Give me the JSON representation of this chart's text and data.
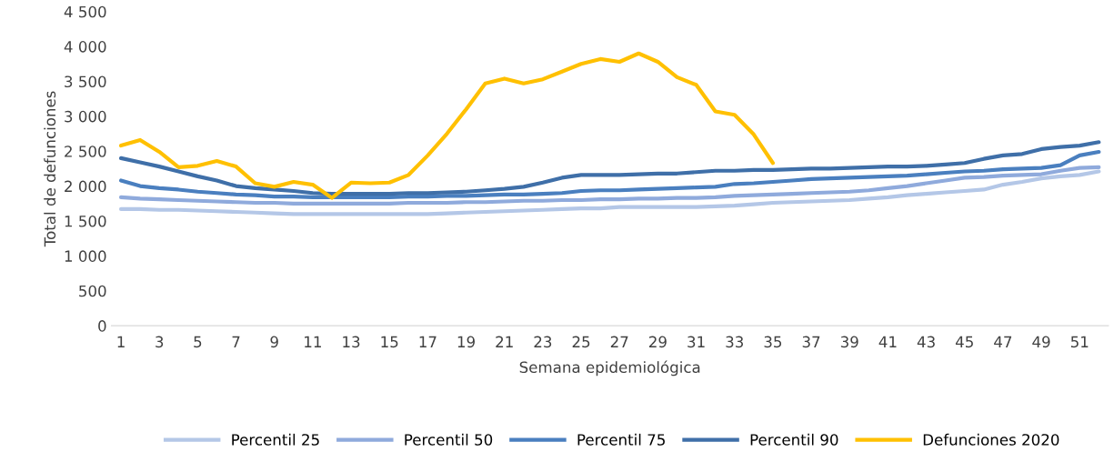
{
  "chart_data": {
    "type": "line",
    "xlabel": "Semana epidemiológica",
    "ylabel": "Total de defunciones",
    "categories": [
      "1",
      null,
      "3",
      null,
      "5",
      null,
      "7",
      null,
      "9",
      null,
      "11",
      null,
      "13",
      null,
      "15",
      null,
      "17",
      null,
      "19",
      null,
      "21",
      null,
      "23",
      null,
      "25",
      null,
      "27",
      null,
      "29",
      null,
      "31",
      null,
      "33",
      null,
      "35",
      null,
      "37",
      null,
      "39",
      null,
      "41",
      null,
      "43",
      null,
      "45",
      null,
      "47",
      null,
      "49",
      null,
      "51",
      null
    ],
    "ylim": [
      0,
      4500
    ],
    "yticks": [
      0,
      500,
      {
        "value": 1000,
        "label": "1 000"
      },
      {
        "value": 1500,
        "label": "1 500"
      },
      {
        "value": 2000,
        "label": "2 000"
      },
      {
        "value": 2500,
        "label": "2 500"
      },
      {
        "value": 3000,
        "label": "3 000"
      },
      {
        "value": 3500,
        "label": "3 500"
      },
      {
        "value": 4000,
        "label": "4 000"
      },
      {
        "value": 4500,
        "label": "4 500"
      }
    ],
    "grid": false,
    "legend": "bottom",
    "marker": "none",
    "line_style": "solid",
    "series": [
      {
        "name": "Percentil 25",
        "color": "#b4c7e7",
        "values": [
          1670,
          1670,
          1660,
          1660,
          1650,
          1640,
          1630,
          1620,
          1610,
          1600,
          1600,
          1600,
          1600,
          1600,
          1600,
          1600,
          1600,
          1610,
          1620,
          1630,
          1640,
          1650,
          1660,
          1670,
          1680,
          1680,
          1700,
          1700,
          1700,
          1700,
          1700,
          1710,
          1720,
          1740,
          1760,
          1770,
          1780,
          1790,
          1800,
          1820,
          1840,
          1870,
          1890,
          1910,
          1930,
          1950,
          2020,
          2060,
          2110,
          2140,
          2160,
          2210
        ]
      },
      {
        "name": "Percentil 50",
        "color": "#8faadc",
        "values": [
          1840,
          1820,
          1810,
          1800,
          1790,
          1780,
          1770,
          1760,
          1760,
          1750,
          1750,
          1750,
          1750,
          1750,
          1750,
          1760,
          1760,
          1760,
          1770,
          1770,
          1780,
          1790,
          1790,
          1800,
          1800,
          1810,
          1810,
          1820,
          1820,
          1830,
          1830,
          1840,
          1860,
          1870,
          1880,
          1890,
          1900,
          1910,
          1920,
          1940,
          1970,
          2000,
          2040,
          2080,
          2120,
          2130,
          2150,
          2160,
          2170,
          2220,
          2260,
          2270
        ]
      },
      {
        "name": "Percentil 75",
        "color": "#4a7fbf",
        "values": [
          2080,
          2000,
          1970,
          1950,
          1920,
          1900,
          1880,
          1870,
          1850,
          1850,
          1840,
          1840,
          1840,
          1840,
          1840,
          1850,
          1850,
          1860,
          1860,
          1870,
          1880,
          1880,
          1890,
          1900,
          1930,
          1940,
          1940,
          1950,
          1960,
          1970,
          1980,
          1990,
          2030,
          2040,
          2060,
          2080,
          2100,
          2110,
          2120,
          2130,
          2140,
          2150,
          2170,
          2190,
          2210,
          2220,
          2240,
          2250,
          2260,
          2300,
          2440,
          2490
        ]
      },
      {
        "name": "Percentil 90",
        "color": "#3f6fa8",
        "values": [
          2400,
          2340,
          2280,
          2210,
          2140,
          2080,
          2000,
          1970,
          1950,
          1930,
          1900,
          1890,
          1890,
          1890,
          1890,
          1900,
          1900,
          1910,
          1920,
          1940,
          1960,
          1990,
          2050,
          2120,
          2160,
          2160,
          2160,
          2170,
          2180,
          2180,
          2200,
          2220,
          2220,
          2230,
          2230,
          2240,
          2250,
          2250,
          2260,
          2270,
          2280,
          2280,
          2290,
          2310,
          2330,
          2390,
          2440,
          2460,
          2530,
          2560,
          2580,
          2630
        ]
      },
      {
        "name": "Defunciones 2020",
        "color": "#ffc000",
        "values": [
          2580,
          2660,
          2490,
          2270,
          2290,
          2360,
          2280,
          2040,
          1990,
          2060,
          2020,
          1830,
          2050,
          2040,
          2050,
          2160,
          2440,
          2750,
          3100,
          3470,
          3540,
          3470,
          3530,
          3640,
          3750,
          3820,
          3780,
          3900,
          3780,
          3560,
          3450,
          3070,
          3020,
          2740,
          2330,
          null,
          null,
          null,
          null,
          null,
          null,
          null,
          null,
          null,
          null,
          null,
          null,
          null,
          null,
          null,
          null,
          null
        ]
      }
    ]
  }
}
